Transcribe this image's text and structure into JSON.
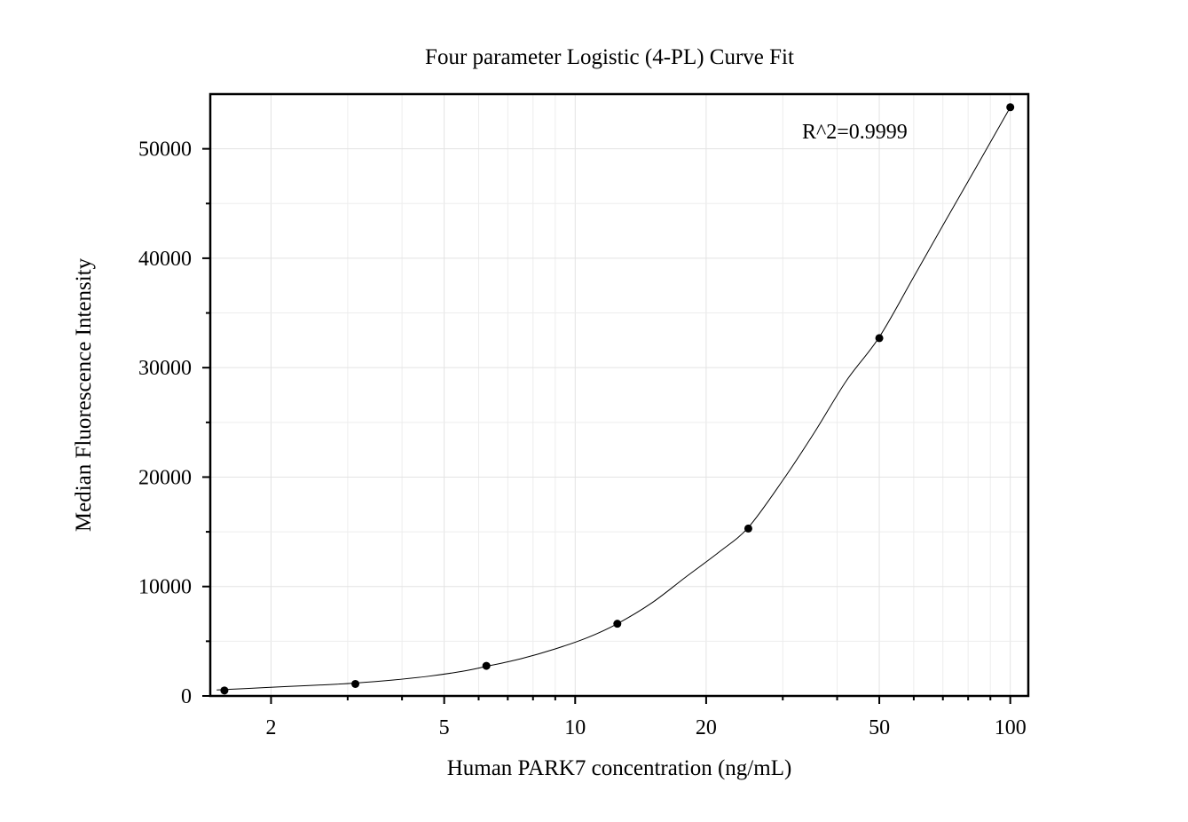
{
  "chart_data": {
    "type": "scatter",
    "title": "Four parameter Logistic (4-PL) Curve Fit",
    "xlabel": "Human PARK7 concentration (ng/mL)",
    "ylabel": "Median Fluorescence Intensity",
    "xscale": "log",
    "xlim": [
      1.45,
      110
    ],
    "ylim": [
      0,
      55000
    ],
    "x_ticks": [
      2,
      5,
      10,
      20,
      50,
      100
    ],
    "x_tick_labels": [
      "2",
      "5",
      "10",
      "20",
      "50",
      "100"
    ],
    "y_ticks": [
      0,
      10000,
      20000,
      30000,
      40000,
      50000
    ],
    "y_tick_labels": [
      "0",
      "10000",
      "20000",
      "30000",
      "40000",
      "50000"
    ],
    "grid": true,
    "annotation": "R^2=0.9999",
    "series": [
      {
        "x": [
          1.5625,
          3.125,
          6.25,
          12.5,
          25,
          50,
          100
        ],
        "y": [
          500,
          1100,
          2750,
          6600,
          15300,
          32700,
          53800
        ]
      }
    ],
    "fit_curve": {
      "type": "4-PL",
      "x": [
        1.5,
        1.8,
        2.2,
        2.6,
        3.125,
        3.8,
        4.6,
        5.5,
        6.25,
        7.5,
        9,
        10.7,
        12.5,
        15,
        18,
        21.5,
        25,
        30,
        35.5,
        42,
        50,
        60,
        70,
        84,
        100
      ],
      "y": [
        550,
        700,
        870,
        1000,
        1180,
        1450,
        1800,
        2250,
        2700,
        3400,
        4300,
        5350,
        6600,
        8500,
        10900,
        13200,
        15400,
        19700,
        24100,
        28800,
        32800,
        38300,
        43000,
        48500,
        53800
      ]
    }
  }
}
